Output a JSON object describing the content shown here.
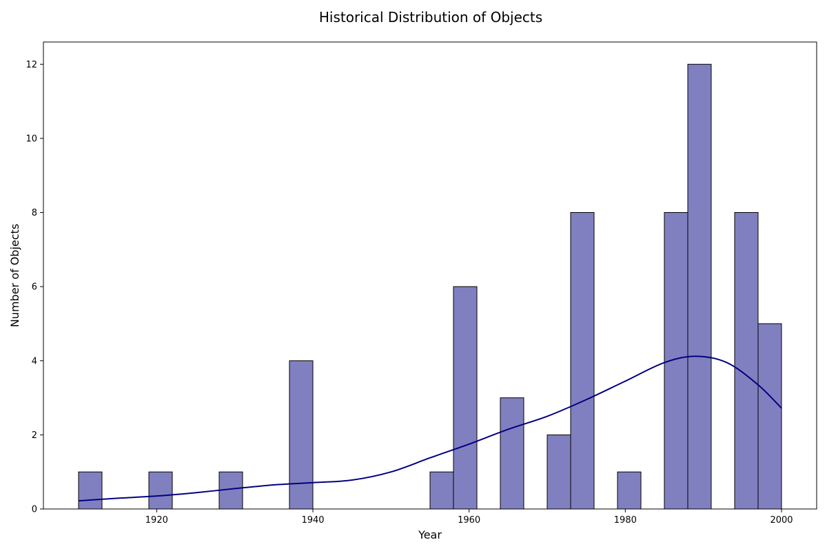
{
  "chart_data": {
    "type": "bar",
    "subtype": "histogram",
    "title": "Historical Distribution of Objects",
    "xlabel": "Year",
    "ylabel": "Number of Objects",
    "xlim": [
      1905.5,
      2004.5
    ],
    "ylim": [
      0,
      12.6
    ],
    "x_ticks": [
      1920,
      1940,
      1960,
      1980,
      2000
    ],
    "y_ticks": [
      0,
      2,
      4,
      6,
      8,
      10,
      12
    ],
    "grid": false,
    "legend": "none",
    "bins": [
      {
        "start": 1910,
        "end": 1913,
        "count": 1
      },
      {
        "start": 1919,
        "end": 1922,
        "count": 1
      },
      {
        "start": 1928,
        "end": 1931,
        "count": 1
      },
      {
        "start": 1937,
        "end": 1940,
        "count": 4
      },
      {
        "start": 1955,
        "end": 1958,
        "count": 1
      },
      {
        "start": 1958,
        "end": 1961,
        "count": 6
      },
      {
        "start": 1964,
        "end": 1967,
        "count": 3
      },
      {
        "start": 1970,
        "end": 1973,
        "count": 2
      },
      {
        "start": 1973,
        "end": 1976,
        "count": 8
      },
      {
        "start": 1979,
        "end": 1982,
        "count": 1
      },
      {
        "start": 1985,
        "end": 1988,
        "count": 8
      },
      {
        "start": 1988,
        "end": 1991,
        "count": 12
      },
      {
        "start": 1994,
        "end": 1997,
        "count": 8
      },
      {
        "start": 1997,
        "end": 2000,
        "count": 5
      }
    ],
    "kde_curve": {
      "x": [
        1910,
        1915,
        1920,
        1925,
        1930,
        1935,
        1940,
        1945,
        1950,
        1955,
        1960,
        1965,
        1970,
        1975,
        1980,
        1985,
        1989,
        1993,
        1997,
        2000
      ],
      "y": [
        0.22,
        0.29,
        0.35,
        0.44,
        0.55,
        0.65,
        0.71,
        0.78,
        1.0,
        1.38,
        1.75,
        2.15,
        2.5,
        2.95,
        3.45,
        3.95,
        4.12,
        3.95,
        3.35,
        2.72
      ]
    },
    "colors": {
      "bar_fill": "#8080c0",
      "bar_edge": "#000000",
      "kde_line": "#000080"
    }
  }
}
